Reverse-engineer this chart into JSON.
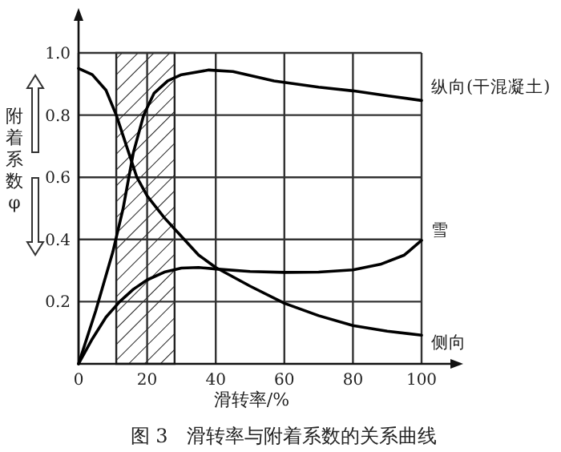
{
  "chart_data": {
    "type": "line",
    "title": "图 3　滑转率与附着系数的关系曲线",
    "xlabel": "滑转率/%",
    "ylabel": "附着系数φ",
    "xlim": [
      0,
      100
    ],
    "ylim": [
      0,
      1.0
    ],
    "xticks": [
      0,
      20,
      40,
      60,
      80,
      100
    ],
    "yticks": [
      0.2,
      0.4,
      0.6,
      0.8,
      {
        "value": 1.0,
        "label": "1.0"
      }
    ],
    "grid": true,
    "legend": false,
    "marker": "none",
    "line_style": "solid",
    "bands": [
      {
        "axis": "x",
        "from": 11,
        "to": 28
      }
    ],
    "series": [
      {
        "name": "纵向(干混凝土)",
        "color": "#000000",
        "x": [
          0,
          5,
          10,
          13,
          16,
          19,
          22,
          26,
          30,
          38,
          45,
          57,
          70,
          80,
          90,
          100
        ],
        "values": [
          0,
          0.17,
          0.36,
          0.5,
          0.68,
          0.8,
          0.87,
          0.91,
          0.93,
          0.945,
          0.94,
          0.91,
          0.89,
          0.878,
          0.862,
          0.847
        ]
      },
      {
        "name": "雪",
        "color": "#000000",
        "x": [
          0,
          4,
          8,
          12,
          16,
          20,
          25,
          30,
          35,
          40,
          50,
          60,
          70,
          80,
          88,
          95,
          100
        ],
        "values": [
          0,
          0.08,
          0.15,
          0.2,
          0.24,
          0.27,
          0.295,
          0.308,
          0.31,
          0.305,
          0.297,
          0.294,
          0.295,
          0.302,
          0.32,
          0.35,
          0.397
        ]
      },
      {
        "name": "侧向",
        "color": "#000000",
        "x": [
          0,
          4,
          8,
          11,
          14,
          17,
          20,
          25,
          30,
          35,
          40,
          50,
          60,
          70,
          80,
          90,
          100
        ],
        "values": [
          0.95,
          0.93,
          0.88,
          0.8,
          0.7,
          0.6,
          0.54,
          0.47,
          0.41,
          0.35,
          0.31,
          0.25,
          0.195,
          0.155,
          0.123,
          0.105,
          0.092
        ]
      }
    ]
  }
}
